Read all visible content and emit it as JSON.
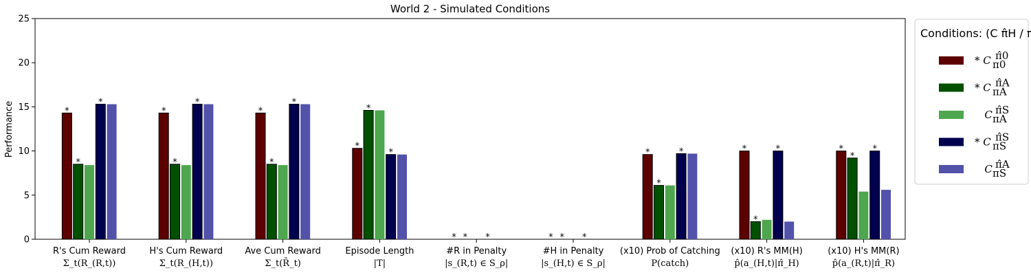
{
  "chart_data": {
    "type": "bar",
    "title": "World 2 - Simulated Conditions",
    "ylabel": "Performance",
    "ylim": [
      0,
      25
    ],
    "yticks": [
      0,
      5,
      10,
      15,
      20,
      25
    ],
    "categories": [
      {
        "label": "R's Cum Reward",
        "sub": "Σ_t(R_(R,t))"
      },
      {
        "label": "H's Cum Reward",
        "sub": "Σ_t(R_(H,t))"
      },
      {
        "label": "Ave Cum Reward",
        "sub": "Σ_t(R̄_t)"
      },
      {
        "label": "Episode Length",
        "sub": "|T|"
      },
      {
        "label": "#R in Penalty",
        "sub": "|s_(R,t) ∈ S_ρ|"
      },
      {
        "label": "#H in Penalty",
        "sub": "|s_(H,t) ∈ S_ρ|"
      },
      {
        "label": "(x10) Prob of Catching",
        "sub": "P(catch)"
      },
      {
        "label": "(x10) R's MM(H)",
        "sub": "p̂(a_(H,t)|π̂_H)"
      },
      {
        "label": "(x10) H's MM(R)",
        "sub": "p̂(a_(R,t)|π̂_R)"
      }
    ],
    "series": [
      {
        "name": "* C π̂0 / π0",
        "color": "#5c0000",
        "values": [
          14.3,
          14.3,
          14.3,
          10.3,
          0,
          0,
          9.6,
          10.0,
          10.0
        ],
        "stars": [
          true,
          true,
          true,
          true,
          true,
          true,
          true,
          true,
          true
        ]
      },
      {
        "name": "* C π̂A / πA",
        "color": "#005000",
        "values": [
          8.5,
          8.5,
          8.5,
          14.6,
          0,
          0,
          6.1,
          2.0,
          9.2
        ],
        "stars": [
          true,
          true,
          true,
          true,
          true,
          true,
          true,
          true,
          true
        ]
      },
      {
        "name": "C π̂S / πA",
        "color": "#4ea64e",
        "values": [
          8.4,
          8.4,
          8.4,
          14.6,
          0,
          0,
          6.1,
          2.2,
          5.4
        ],
        "stars": [
          false,
          false,
          false,
          false,
          false,
          false,
          false,
          false,
          false
        ]
      },
      {
        "name": "* C π̂S / πS",
        "color": "#00004e",
        "values": [
          15.3,
          15.3,
          15.3,
          9.6,
          0,
          0,
          9.7,
          10.0,
          10.0
        ],
        "stars": [
          true,
          true,
          true,
          true,
          true,
          true,
          true,
          true,
          true
        ]
      },
      {
        "name": "C π̂A / πS",
        "color": "#5252aa",
        "values": [
          15.3,
          15.3,
          15.3,
          9.6,
          0,
          0,
          9.7,
          2.0,
          5.6
        ],
        "stars": [
          false,
          false,
          false,
          false,
          false,
          false,
          false,
          false,
          false
        ]
      }
    ],
    "legend": {
      "title": "Conditions: (C π̂H / πH)",
      "placement": "right",
      "entries": [
        {
          "star": "*",
          "sup": "π̂0",
          "sub": "π0"
        },
        {
          "star": "*",
          "sup": "π̂A",
          "sub": "πA"
        },
        {
          "star": "",
          "sup": "π̂S",
          "sub": "πA"
        },
        {
          "star": "*",
          "sup": "π̂S",
          "sub": "πS"
        },
        {
          "star": "",
          "sup": "π̂A",
          "sub": "πS"
        }
      ]
    },
    "star_symbol": "*",
    "grid": false
  }
}
